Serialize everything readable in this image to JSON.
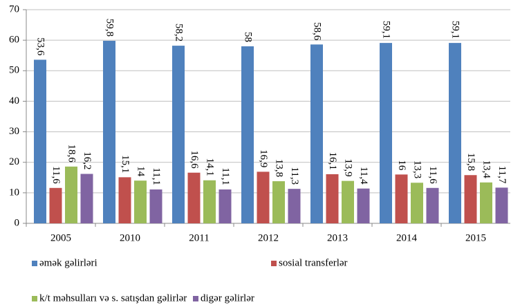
{
  "chart_data": {
    "type": "bar",
    "categories": [
      "2005",
      "2010",
      "2011",
      "2012",
      "2013",
      "2014",
      "2015"
    ],
    "series": [
      {
        "name": "əmək gəlirləri",
        "color": "#4f81bd",
        "values": [
          53.6,
          59.8,
          58.2,
          58,
          58.6,
          59.1,
          59.1
        ],
        "value_labels": [
          "53,6",
          "59,8",
          "58,2",
          "58",
          "58,6",
          "59,1",
          "59,1"
        ]
      },
      {
        "name": "sosial transferlər",
        "color": "#c0504d",
        "values": [
          11.6,
          15.1,
          16.6,
          16.9,
          16.1,
          16,
          15.8
        ],
        "value_labels": [
          "11,6",
          "15,1",
          "16,6",
          "16,9",
          "16,1",
          "16",
          "15,8"
        ]
      },
      {
        "name": "k/t məhsulları və s. satışdan gəlirlər",
        "color": "#9bbb59",
        "values": [
          18.6,
          14,
          14.1,
          13.8,
          13.9,
          13.3,
          13.4
        ],
        "value_labels": [
          "18,6",
          "14",
          "14,1",
          "13,8",
          "13,9",
          "13,3",
          "13,4"
        ]
      },
      {
        "name": "digər gəlirlər",
        "color": "#8064a2",
        "values": [
          16.2,
          11.1,
          11.1,
          11.3,
          11.4,
          11.6,
          11.7
        ],
        "value_labels": [
          "16,2",
          "11,1",
          "11,1",
          "11,3",
          "11,4",
          "11,6",
          "11,7"
        ]
      }
    ],
    "ylim": [
      0,
      70
    ],
    "yticks": [
      0,
      10,
      20,
      30,
      40,
      50,
      60,
      70
    ],
    "grid": true
  }
}
